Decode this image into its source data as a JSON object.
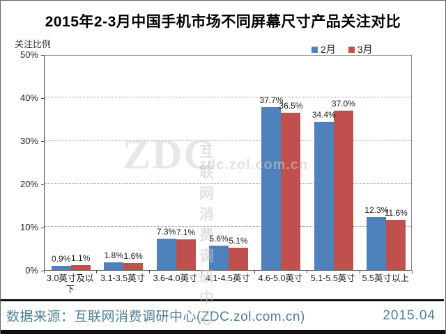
{
  "title": "2015年2-3月中国手机市场不同屏幕尺寸产品关注对比",
  "y_axis_title": "关注比例",
  "legend": [
    {
      "label": "2月",
      "color": "#4F81BD"
    },
    {
      "label": "3月",
      "color": "#C0504D"
    }
  ],
  "chart_data": {
    "type": "bar",
    "title": "2015年2-3月中国手机市场不同屏幕尺寸产品关注对比",
    "categories": [
      "3.0英寸及以下",
      "3.1-3.5英寸",
      "3.6-4.0英寸",
      "4.1-4.5英寸",
      "4.6-5.0英寸",
      "5.1-5.5英寸",
      "5.5英寸以上"
    ],
    "series": [
      {
        "name": "2月",
        "color": "#4F81BD",
        "values": [
          0.9,
          1.8,
          7.3,
          5.6,
          37.7,
          34.4,
          12.3
        ]
      },
      {
        "name": "3月",
        "color": "#C0504D",
        "values": [
          1.1,
          1.6,
          7.1,
          5.1,
          36.5,
          37.0,
          11.6
        ]
      }
    ],
    "xlabel": "",
    "ylabel": "关注比例",
    "ylim": [
      0,
      50
    ],
    "ytick_step": 10,
    "y_tick_labels": [
      "0%",
      "10%",
      "20%",
      "30%",
      "40%",
      "50%"
    ],
    "grid": "horizontal-dotted",
    "legend_position": "top-right",
    "value_label_format": "{value}%"
  },
  "watermark": {
    "big": "ZDC",
    "line1": "互联网消费调研中心",
    "line2": "zdc.zol.com.cn"
  },
  "footer": {
    "source": "数据来源：互联网消费调研中心(ZDC.zol.com.cn)",
    "date": "2015.04"
  },
  "colors": {
    "feb_bar": "#4F81BD",
    "mar_bar": "#C0504D",
    "footer_text": "#4e7f93",
    "gridline": "#9a9a9a"
  }
}
